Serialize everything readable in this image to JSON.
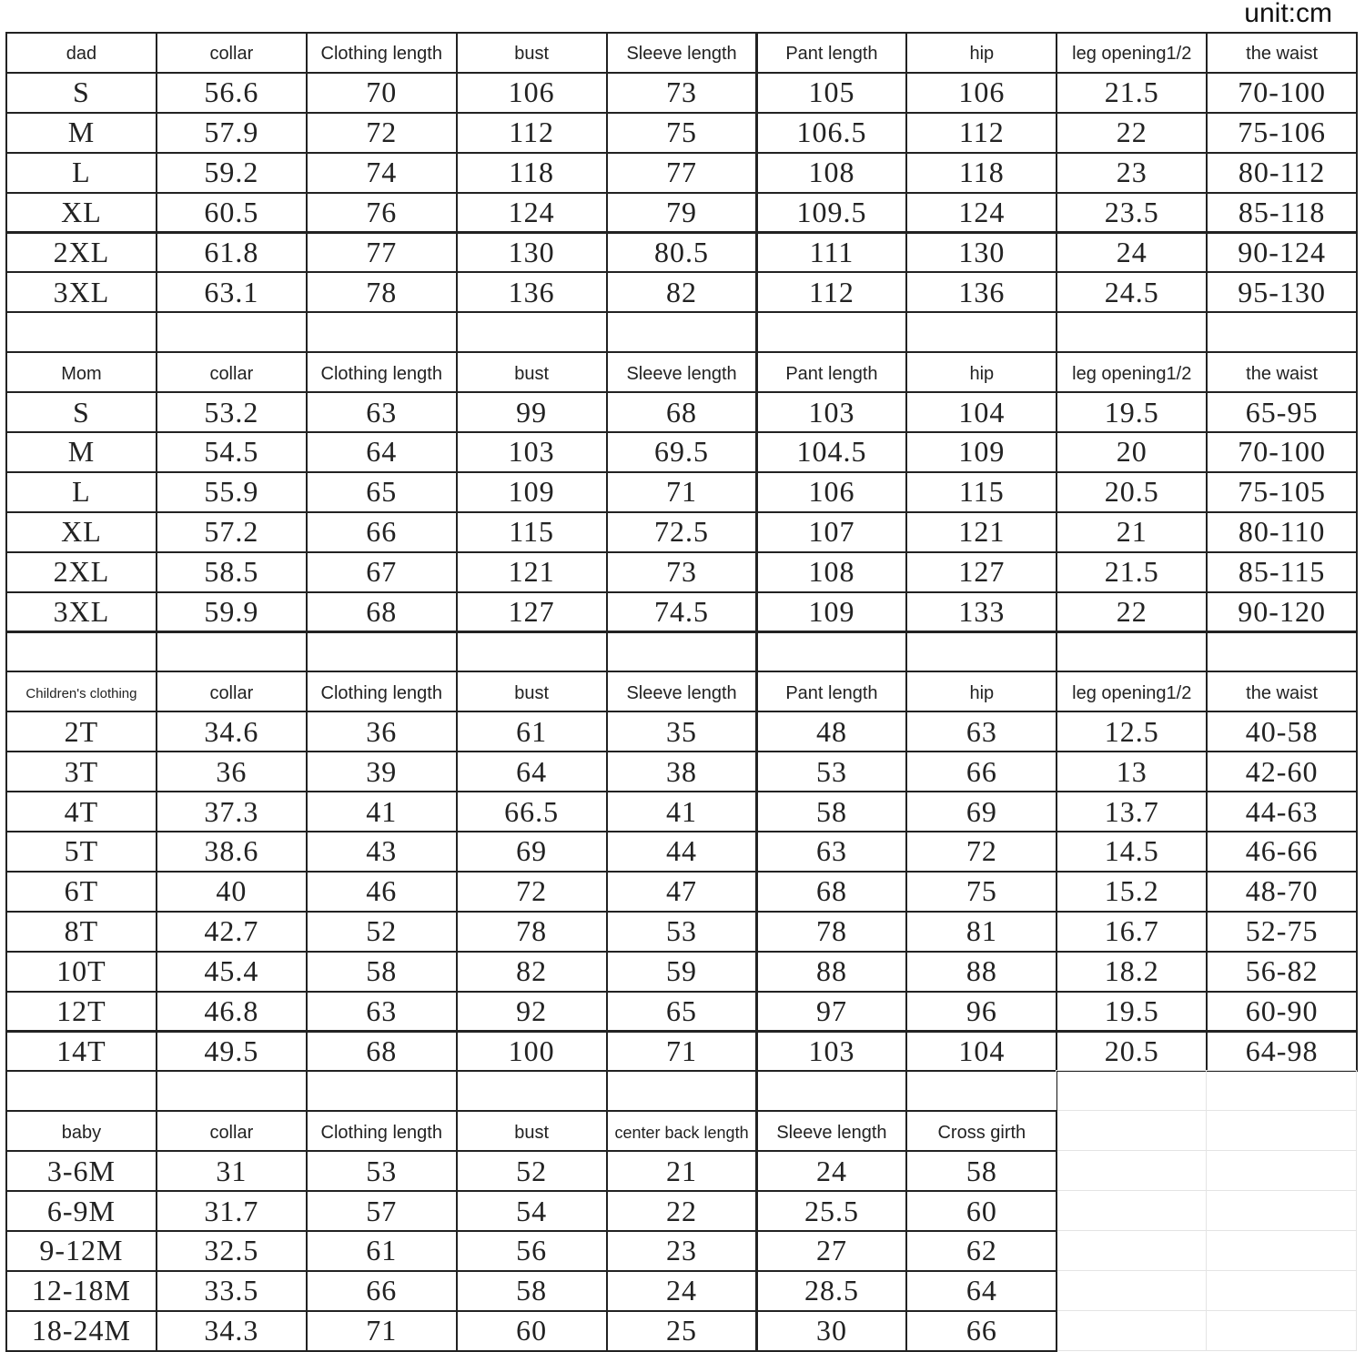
{
  "unit_label": "unit:cm",
  "sections": [
    {
      "headers": [
        "dad",
        "collar",
        "Clothing length",
        "bust",
        "Sleeve length",
        "Pant length",
        "hip",
        "leg opening1/2",
        "the waist"
      ],
      "rows": [
        [
          "S",
          "56.6",
          "70",
          "106",
          "73",
          "105",
          "106",
          "21.5",
          "70-100"
        ],
        [
          "M",
          "57.9",
          "72",
          "112",
          "75",
          "106.5",
          "112",
          "22",
          "75-106"
        ],
        [
          "L",
          "59.2",
          "74",
          "118",
          "77",
          "108",
          "118",
          "23",
          "80-112"
        ],
        [
          "XL",
          "60.5",
          "76",
          "124",
          "79",
          "109.5",
          "124",
          "23.5",
          "85-118"
        ],
        [
          "2XL",
          "61.8",
          "77",
          "130",
          "80.5",
          "111",
          "130",
          "24",
          "90-124"
        ],
        [
          "3XL",
          "63.1",
          "78",
          "136",
          "82",
          "112",
          "136",
          "24.5",
          "95-130"
        ]
      ]
    },
    {
      "headers": [
        "Mom",
        "collar",
        "Clothing length",
        "bust",
        "Sleeve length",
        "Pant length",
        "hip",
        "leg opening1/2",
        "the waist"
      ],
      "rows": [
        [
          "S",
          "53.2",
          "63",
          "99",
          "68",
          "103",
          "104",
          "19.5",
          "65-95"
        ],
        [
          "M",
          "54.5",
          "64",
          "103",
          "69.5",
          "104.5",
          "109",
          "20",
          "70-100"
        ],
        [
          "L",
          "55.9",
          "65",
          "109",
          "71",
          "106",
          "115",
          "20.5",
          "75-105"
        ],
        [
          "XL",
          "57.2",
          "66",
          "115",
          "72.5",
          "107",
          "121",
          "21",
          "80-110"
        ],
        [
          "2XL",
          "58.5",
          "67",
          "121",
          "73",
          "108",
          "127",
          "21.5",
          "85-115"
        ],
        [
          "3XL",
          "59.9",
          "68",
          "127",
          "74.5",
          "109",
          "133",
          "22",
          "90-120"
        ]
      ]
    },
    {
      "headers": [
        "Children's clothing",
        "collar",
        "Clothing length",
        "bust",
        "Sleeve length",
        "Pant length",
        "hip",
        "leg opening1/2",
        "the waist"
      ],
      "rows": [
        [
          "2T",
          "34.6",
          "36",
          "61",
          "35",
          "48",
          "63",
          "12.5",
          "40-58"
        ],
        [
          "3T",
          "36",
          "39",
          "64",
          "38",
          "53",
          "66",
          "13",
          "42-60"
        ],
        [
          "4T",
          "37.3",
          "41",
          "66.5",
          "41",
          "58",
          "69",
          "13.7",
          "44-63"
        ],
        [
          "5T",
          "38.6",
          "43",
          "69",
          "44",
          "63",
          "72",
          "14.5",
          "46-66"
        ],
        [
          "6T",
          "40",
          "46",
          "72",
          "47",
          "68",
          "75",
          "15.2",
          "48-70"
        ],
        [
          "8T",
          "42.7",
          "52",
          "78",
          "53",
          "78",
          "81",
          "16.7",
          "52-75"
        ],
        [
          "10T",
          "45.4",
          "58",
          "82",
          "59",
          "88",
          "88",
          "18.2",
          "56-82"
        ],
        [
          "12T",
          "46.8",
          "63",
          "92",
          "65",
          "97",
          "96",
          "19.5",
          "60-90"
        ],
        [
          "14T",
          "49.5",
          "68",
          "100",
          "71",
          "103",
          "104",
          "20.5",
          "64-98"
        ]
      ]
    },
    {
      "headers": [
        "baby",
        "collar",
        "Clothing length",
        "bust",
        "center back length",
        "Sleeve length",
        "Cross girth"
      ],
      "rows": [
        [
          "3-6M",
          "31",
          "53",
          "52",
          "21",
          "24",
          "58"
        ],
        [
          "6-9M",
          "31.7",
          "57",
          "54",
          "22",
          "25.5",
          "60"
        ],
        [
          "9-12M",
          "32.5",
          "61",
          "56",
          "23",
          "27",
          "62"
        ],
        [
          "12-18M",
          "33.5",
          "66",
          "58",
          "24",
          "28.5",
          "64"
        ],
        [
          "18-24M",
          "34.3",
          "71",
          "60",
          "25",
          "30",
          "66"
        ]
      ]
    }
  ]
}
